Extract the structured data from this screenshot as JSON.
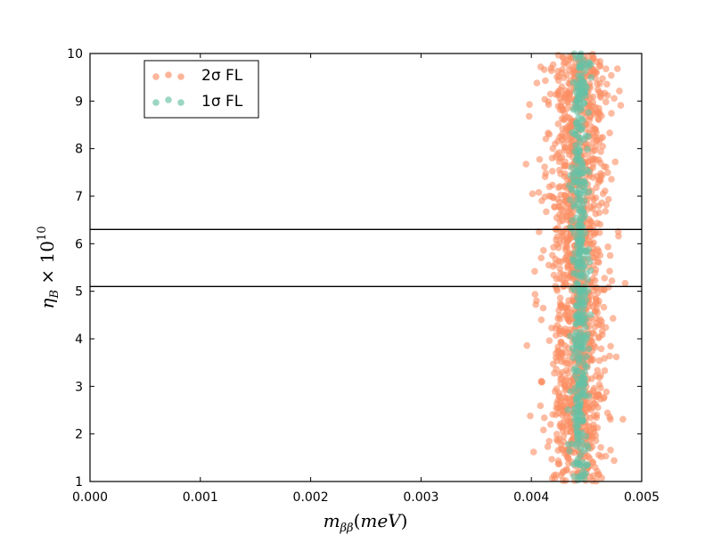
{
  "chart_data": {
    "type": "scatter",
    "title": "",
    "xlabel": "m_{ββ}(meV)",
    "ylabel": "η_B × 10^{10}",
    "xlim": [
      0.0,
      0.005
    ],
    "ylim": [
      1,
      10
    ],
    "x_ticks": [
      "0.000",
      "0.001",
      "0.002",
      "0.003",
      "0.004",
      "0.005"
    ],
    "y_ticks": [
      "1",
      "2",
      "3",
      "4",
      "5",
      "6",
      "7",
      "8",
      "9",
      "10"
    ],
    "grid": false,
    "legend": {
      "position": "top-left",
      "entries": [
        {
          "series": "2σ FL",
          "color": "#fc8d62"
        },
        {
          "series": "1σ FL",
          "color": "#66c2a5"
        }
      ]
    },
    "hlines": [
      5.1,
      6.3
    ],
    "series": [
      {
        "name": "2σ FL",
        "color": "#fc8d62",
        "alpha": 0.6,
        "x_range": [
          0.00395,
          0.00485
        ],
        "x_center": 0.00442,
        "y_range": [
          1,
          10
        ],
        "points": [
          [
            0.00398,
            8.68
          ],
          [
            0.00401,
            7.05
          ],
          [
            0.00403,
            5.42
          ],
          [
            0.00396,
            3.86
          ],
          [
            0.00399,
            2.38
          ],
          [
            0.00405,
            9.38
          ],
          [
            0.00402,
            1.62
          ],
          [
            0.00407,
            6.25
          ],
          [
            0.00404,
            4.72
          ],
          [
            0.00409,
            3.11
          ],
          [
            0.00478,
            9.68
          ],
          [
            0.00481,
            8.91
          ],
          [
            0.00483,
            2.31
          ],
          [
            0.00476,
            7.72
          ],
          [
            0.00479,
            6.16
          ],
          [
            0.00474,
            4.43
          ],
          [
            0.00477,
            3.62
          ],
          [
            0.00473,
            5.22
          ],
          [
            0.00475,
            1.44
          ],
          [
            0.00471,
            8.33
          ],
          [
            0.00411,
            5.86
          ],
          [
            0.00413,
            7.48
          ],
          [
            0.00468,
            6.82
          ],
          [
            0.00466,
            2.77
          ],
          [
            0.00469,
            9.12
          ]
        ]
      },
      {
        "name": "1σ FL",
        "color": "#66c2a5",
        "alpha": 0.6,
        "x_range": [
          0.00432,
          0.00456
        ],
        "x_center": 0.00444,
        "y_range": [
          1,
          10
        ],
        "points": [
          [
            0.00444,
            9.72
          ],
          [
            0.00441,
            8.55
          ],
          [
            0.00446,
            7.61
          ],
          [
            0.00443,
            6.08
          ],
          [
            0.00445,
            5.36
          ],
          [
            0.00442,
            4.47
          ],
          [
            0.00447,
            3.21
          ],
          [
            0.0044,
            2.16
          ],
          [
            0.00444,
            1.35
          ]
        ]
      }
    ]
  }
}
